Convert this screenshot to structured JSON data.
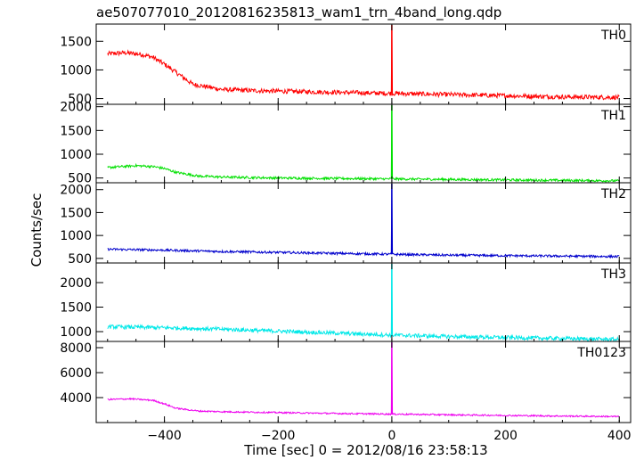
{
  "chart_data": {
    "title": "ae507077010_20120816235813_wam1_trn_4band_long.qdp",
    "xlabel": "Time [sec] 0 = 2012/08/16 23:58:13",
    "ylabel": "Counts/sec",
    "xlim": [
      -520,
      420
    ],
    "x_ticks": [
      "−400",
      "−200",
      "0",
      "200",
      "400"
    ],
    "x_tick_values": [
      -400,
      -200,
      0,
      200,
      400
    ],
    "panels": [
      {
        "name": "TH0",
        "type": "line",
        "color": "#ff0000",
        "ylim": [
          400,
          1800
        ],
        "y_ticks": [
          500,
          1000,
          1500
        ],
        "trend": {
          "x": [
            -500,
            -470,
            -440,
            -420,
            -400,
            -380,
            -350,
            -300,
            -250,
            -200,
            -100,
            0,
            100,
            200,
            300,
            400
          ],
          "y": [
            1280,
            1300,
            1270,
            1220,
            1100,
            960,
            750,
            660,
            640,
            630,
            610,
            590,
            570,
            550,
            530,
            520
          ]
        },
        "noise": 40,
        "spike": {
          "x": 0,
          "y": 1800
        }
      },
      {
        "name": "TH1",
        "type": "line",
        "color": "#00e000",
        "ylim": [
          400,
          2050
        ],
        "y_ticks": [
          500,
          1000,
          1500,
          2000
        ],
        "trend": {
          "x": [
            -500,
            -450,
            -420,
            -400,
            -380,
            -340,
            -300,
            -200,
            -100,
            0,
            100,
            200,
            300,
            400
          ],
          "y": [
            720,
            760,
            740,
            700,
            620,
            540,
            520,
            500,
            490,
            480,
            470,
            460,
            450,
            440
          ]
        },
        "noise": 25,
        "spike": {
          "x": 0,
          "y": 2050
        }
      },
      {
        "name": "TH2",
        "type": "line",
        "color": "#0000cc",
        "ylim": [
          400,
          2150
        ],
        "y_ticks": [
          500,
          1000,
          1500,
          2000
        ],
        "trend": {
          "x": [
            -500,
            -400,
            -300,
            -200,
            -100,
            0,
            100,
            200,
            300,
            400
          ],
          "y": [
            700,
            680,
            650,
            630,
            610,
            590,
            570,
            560,
            550,
            540
          ]
        },
        "noise": 25,
        "spike": {
          "x": 0,
          "y": 2150
        }
      },
      {
        "name": "TH3",
        "type": "line",
        "color": "#00e8e8",
        "ylim": [
          800,
          2400
        ],
        "y_ticks": [
          1000,
          1500,
          2000
        ],
        "trend": {
          "x": [
            -500,
            -400,
            -300,
            -200,
            -100,
            0,
            100,
            200,
            300,
            400
          ],
          "y": [
            1100,
            1080,
            1050,
            1010,
            970,
            930,
            900,
            880,
            860,
            840
          ]
        },
        "noise": 40,
        "spike": {
          "x": 0,
          "y": 2400
        }
      },
      {
        "name": "TH0123",
        "type": "line",
        "color": "#ee00ee",
        "ylim": [
          2000,
          8500
        ],
        "y_ticks": [
          4000,
          6000,
          8000
        ],
        "trend": {
          "x": [
            -500,
            -460,
            -420,
            -400,
            -380,
            -340,
            -300,
            -200,
            -100,
            0,
            100,
            200,
            300,
            400
          ],
          "y": [
            3850,
            3900,
            3780,
            3500,
            3150,
            2920,
            2870,
            2800,
            2730,
            2680,
            2620,
            2570,
            2520,
            2480
          ]
        },
        "noise": 60,
        "spike": {
          "x": 0,
          "y": 8400
        }
      }
    ]
  }
}
